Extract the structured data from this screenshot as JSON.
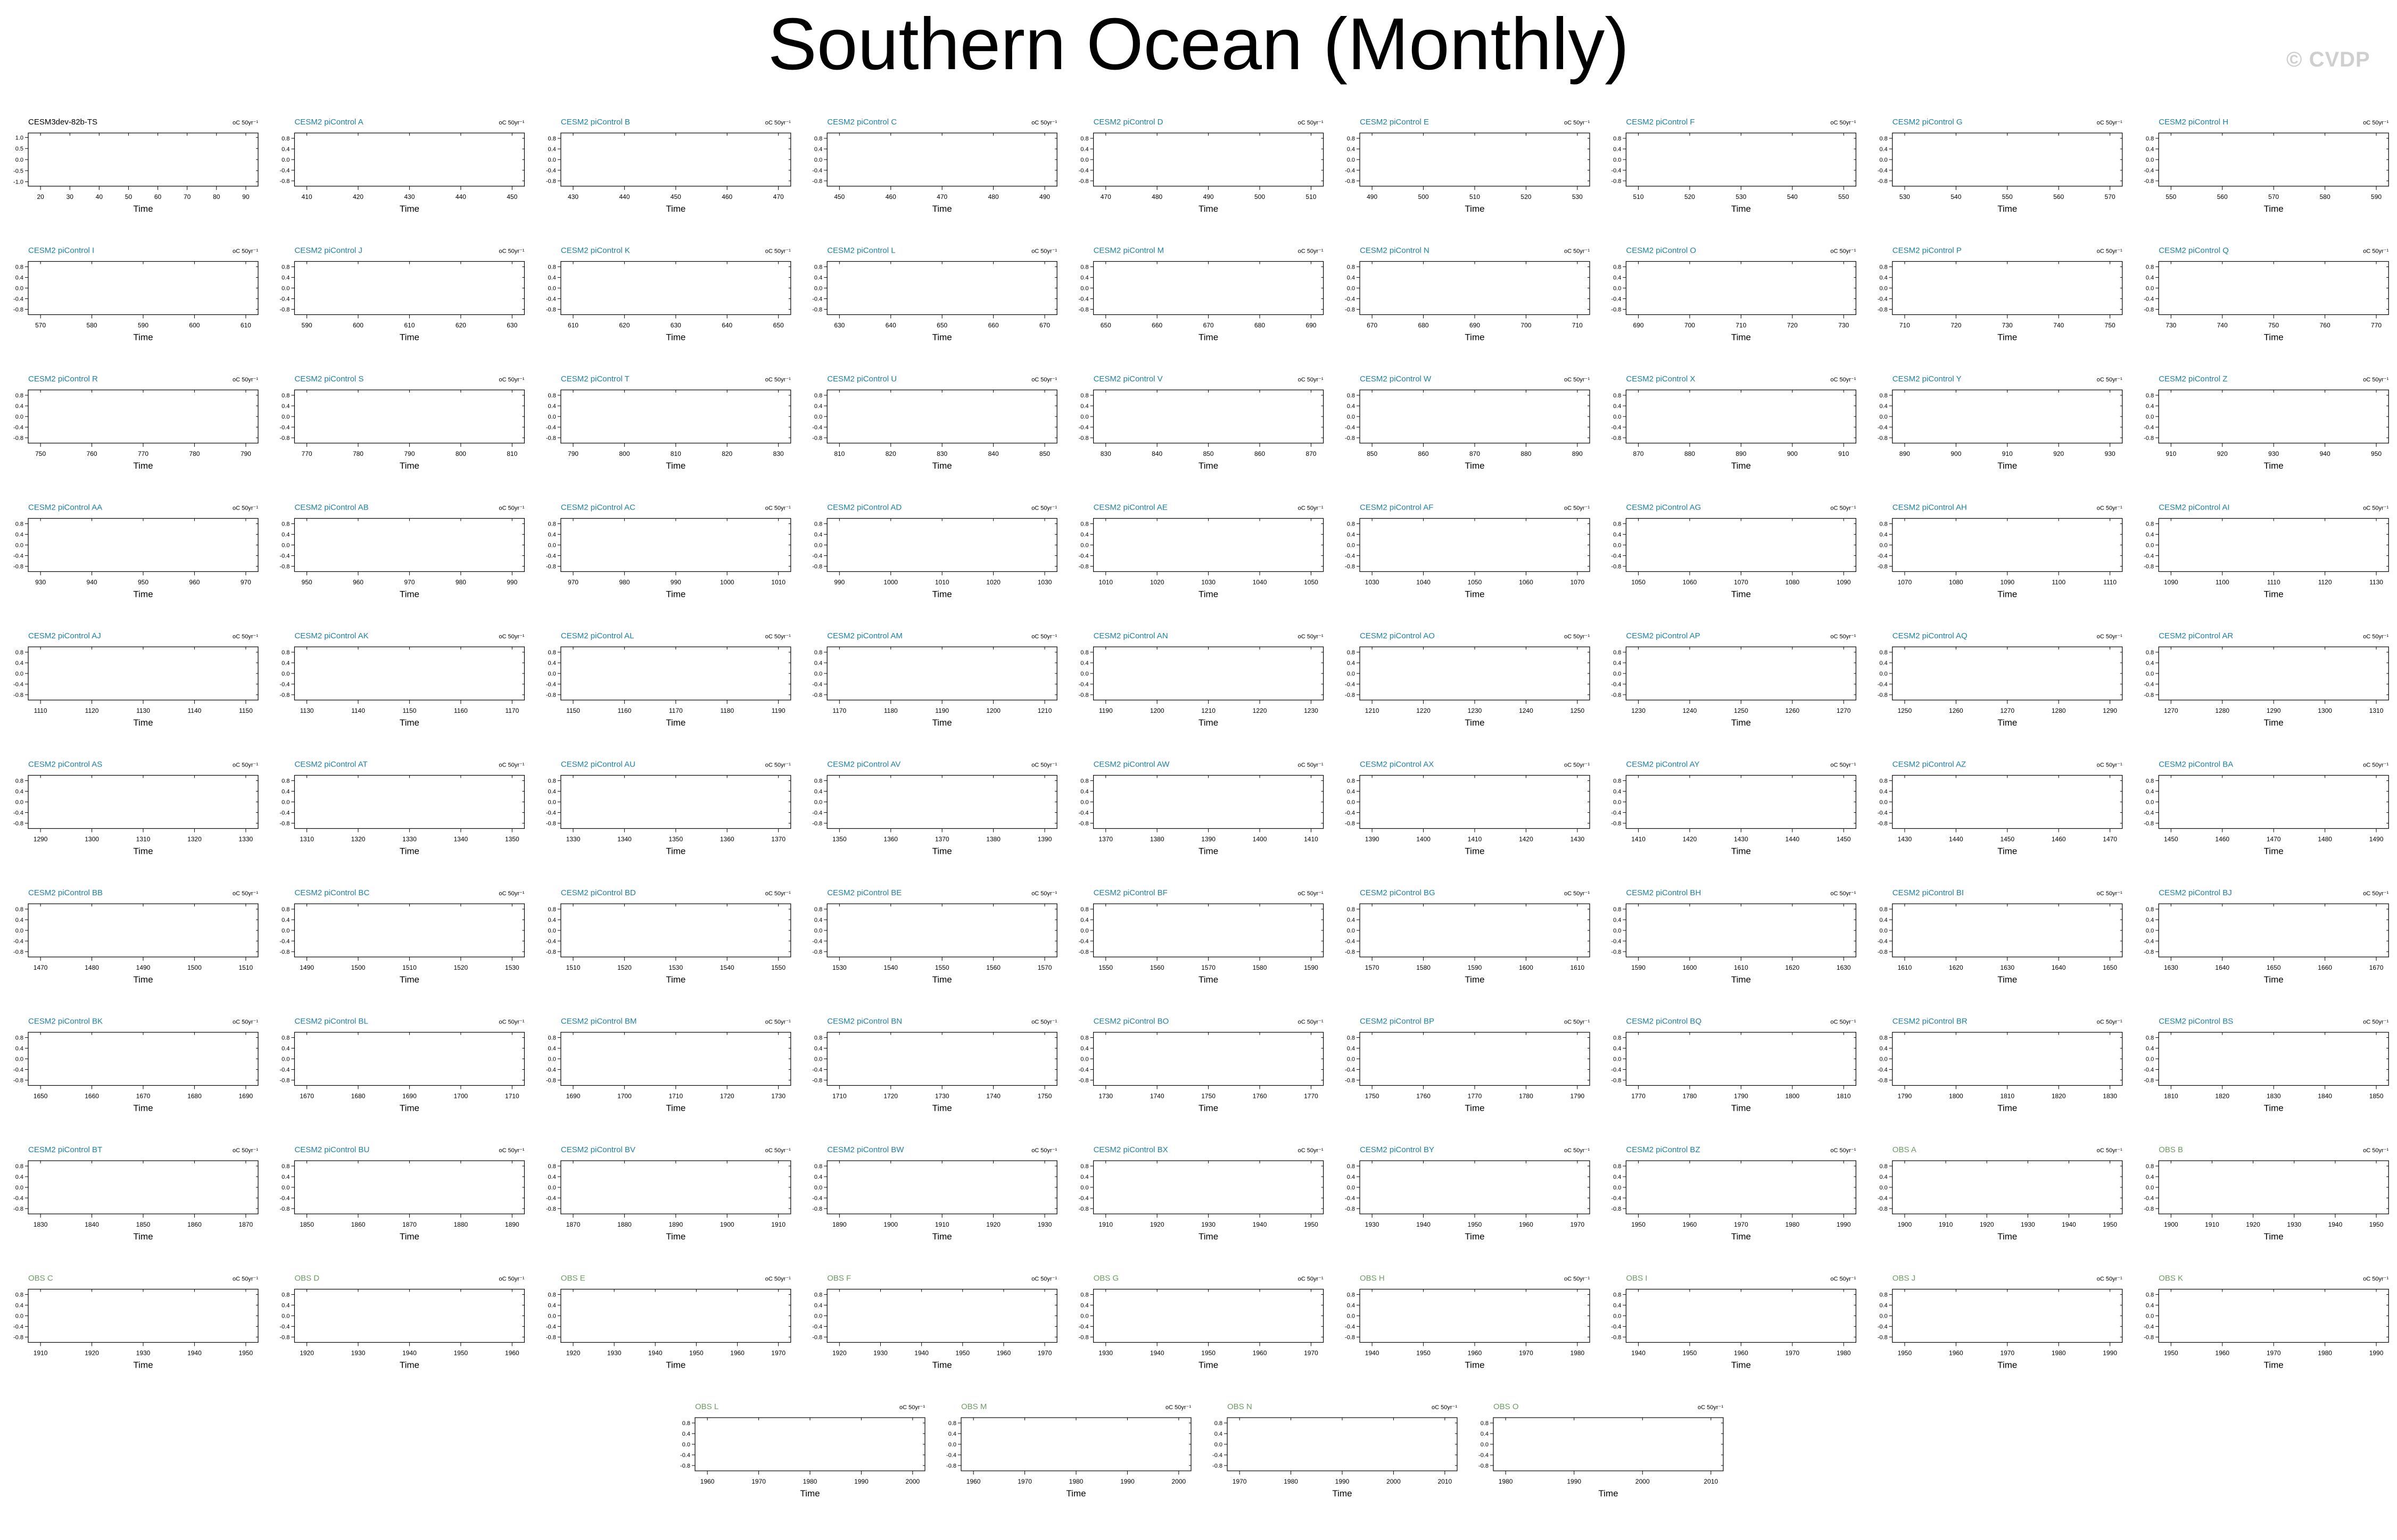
{
  "page": {
    "title": "Southern Ocean (Monthly)",
    "watermark": "© CVDP"
  },
  "colors": {
    "model": "#1e7fa6",
    "obs": "#6d9a62",
    "base": "#000000",
    "line": "#3f63d6"
  },
  "chart_data": {
    "type": "line",
    "unit_label": "oC 50yr⁻¹",
    "xlabel": "Time",
    "ylim": [
      -1.0,
      1.0
    ],
    "series_values_note": "the plotted anomaly curves are not transcribed",
    "panels": [
      {
        "label": "CESM3dev-82b-TS",
        "group": "base",
        "xticks": [
          20,
          30,
          40,
          50,
          60,
          70,
          80,
          90
        ],
        "yticks": [
          "1.0",
          "0.5",
          "0.0",
          "-0.5",
          "-1.0"
        ],
        "ylim": [
          -1.2,
          1.2
        ]
      },
      {
        "label": "CESM2 piControl A",
        "group": "model",
        "xticks": [
          410,
          420,
          430,
          440,
          450
        ]
      },
      {
        "label": "CESM2 piControl B",
        "group": "model",
        "xticks": [
          430,
          440,
          450,
          460,
          470
        ]
      },
      {
        "label": "CESM2 piControl C",
        "group": "model",
        "xticks": [
          450,
          460,
          470,
          480,
          490
        ]
      },
      {
        "label": "CESM2 piControl D",
        "group": "model",
        "xticks": [
          470,
          480,
          490,
          500,
          510
        ]
      },
      {
        "label": "CESM2 piControl E",
        "group": "model",
        "xticks": [
          490,
          500,
          510,
          520,
          530
        ]
      },
      {
        "label": "CESM2 piControl F",
        "group": "model",
        "xticks": [
          510,
          520,
          530,
          540,
          550
        ]
      },
      {
        "label": "CESM2 piControl G",
        "group": "model",
        "xticks": [
          530,
          540,
          550,
          560,
          570
        ]
      },
      {
        "label": "CESM2 piControl H",
        "group": "model",
        "xticks": [
          550,
          560,
          570,
          580,
          590
        ]
      },
      {
        "label": "CESM2 piControl I",
        "group": "model",
        "xticks": [
          570,
          580,
          590,
          600,
          610
        ]
      },
      {
        "label": "CESM2 piControl J",
        "group": "model",
        "xticks": [
          590,
          600,
          610,
          620,
          630
        ]
      },
      {
        "label": "CESM2 piControl K",
        "group": "model",
        "xticks": [
          610,
          620,
          630,
          640,
          650
        ]
      },
      {
        "label": "CESM2 piControl L",
        "group": "model",
        "xticks": [
          630,
          640,
          650,
          660,
          670
        ]
      },
      {
        "label": "CESM2 piControl M",
        "group": "model",
        "xticks": [
          650,
          660,
          670,
          680,
          690
        ]
      },
      {
        "label": "CESM2 piControl N",
        "group": "model",
        "xticks": [
          670,
          680,
          690,
          700,
          710
        ]
      },
      {
        "label": "CESM2 piControl O",
        "group": "model",
        "xticks": [
          690,
          700,
          710,
          720,
          730
        ]
      },
      {
        "label": "CESM2 piControl P",
        "group": "model",
        "xticks": [
          710,
          720,
          730,
          740,
          750
        ]
      },
      {
        "label": "CESM2 piControl Q",
        "group": "model",
        "xticks": [
          730,
          740,
          750,
          760,
          770
        ]
      },
      {
        "label": "CESM2 piControl R",
        "group": "model",
        "xticks": [
          750,
          760,
          770,
          780,
          790
        ]
      },
      {
        "label": "CESM2 piControl S",
        "group": "model",
        "xticks": [
          770,
          780,
          790,
          800,
          810
        ]
      },
      {
        "label": "CESM2 piControl T",
        "group": "model",
        "xticks": [
          790,
          800,
          810,
          820,
          830
        ]
      },
      {
        "label": "CESM2 piControl U",
        "group": "model",
        "xticks": [
          810,
          820,
          830,
          840,
          850
        ]
      },
      {
        "label": "CESM2 piControl V",
        "group": "model",
        "xticks": [
          830,
          840,
          850,
          860,
          870
        ]
      },
      {
        "label": "CESM2 piControl W",
        "group": "model",
        "xticks": [
          850,
          860,
          870,
          880,
          890
        ]
      },
      {
        "label": "CESM2 piControl X",
        "group": "model",
        "xticks": [
          870,
          880,
          890,
          900,
          910
        ]
      },
      {
        "label": "CESM2 piControl Y",
        "group": "model",
        "xticks": [
          890,
          900,
          910,
          920,
          930
        ]
      },
      {
        "label": "CESM2 piControl Z",
        "group": "model",
        "xticks": [
          910,
          920,
          930,
          940,
          950
        ]
      },
      {
        "label": "CESM2 piControl AA",
        "group": "model",
        "xticks": [
          930,
          940,
          950,
          960,
          970
        ]
      },
      {
        "label": "CESM2 piControl AB",
        "group": "model",
        "xticks": [
          950,
          960,
          970,
          980,
          990
        ]
      },
      {
        "label": "CESM2 piControl AC",
        "group": "model",
        "xticks": [
          970,
          980,
          990,
          1000,
          1010
        ]
      },
      {
        "label": "CESM2 piControl AD",
        "group": "model",
        "xticks": [
          990,
          1000,
          1010,
          1020,
          1030
        ]
      },
      {
        "label": "CESM2 piControl AE",
        "group": "model",
        "xticks": [
          1010,
          1020,
          1030,
          1040,
          1050
        ]
      },
      {
        "label": "CESM2 piControl AF",
        "group": "model",
        "xticks": [
          1030,
          1040,
          1050,
          1060,
          1070
        ]
      },
      {
        "label": "CESM2 piControl AG",
        "group": "model",
        "xticks": [
          1050,
          1060,
          1070,
          1080,
          1090
        ]
      },
      {
        "label": "CESM2 piControl AH",
        "group": "model",
        "xticks": [
          1070,
          1080,
          1090,
          1100,
          1110
        ]
      },
      {
        "label": "CESM2 piControl AI",
        "group": "model",
        "xticks": [
          1090,
          1100,
          1110,
          1120,
          1130
        ]
      },
      {
        "label": "CESM2 piControl AJ",
        "group": "model",
        "xticks": [
          1110,
          1120,
          1130,
          1140,
          1150
        ]
      },
      {
        "label": "CESM2 piControl AK",
        "group": "model",
        "xticks": [
          1130,
          1140,
          1150,
          1160,
          1170
        ]
      },
      {
        "label": "CESM2 piControl AL",
        "group": "model",
        "xticks": [
          1150,
          1160,
          1170,
          1180,
          1190
        ]
      },
      {
        "label": "CESM2 piControl AM",
        "group": "model",
        "xticks": [
          1170,
          1180,
          1190,
          1200,
          1210
        ]
      },
      {
        "label": "CESM2 piControl AN",
        "group": "model",
        "xticks": [
          1190,
          1200,
          1210,
          1220,
          1230
        ]
      },
      {
        "label": "CESM2 piControl AO",
        "group": "model",
        "xticks": [
          1210,
          1220,
          1230,
          1240,
          1250
        ]
      },
      {
        "label": "CESM2 piControl AP",
        "group": "model",
        "xticks": [
          1230,
          1240,
          1250,
          1260,
          1270
        ]
      },
      {
        "label": "CESM2 piControl AQ",
        "group": "model",
        "xticks": [
          1250,
          1260,
          1270,
          1280,
          1290
        ]
      },
      {
        "label": "CESM2 piControl AR",
        "group": "model",
        "xticks": [
          1270,
          1280,
          1290,
          1300,
          1310
        ]
      },
      {
        "label": "CESM2 piControl AS",
        "group": "model",
        "xticks": [
          1290,
          1300,
          1310,
          1320,
          1330
        ]
      },
      {
        "label": "CESM2 piControl AT",
        "group": "model",
        "xticks": [
          1310,
          1320,
          1330,
          1340,
          1350
        ]
      },
      {
        "label": "CESM2 piControl AU",
        "group": "model",
        "xticks": [
          1330,
          1340,
          1350,
          1360,
          1370
        ]
      },
      {
        "label": "CESM2 piControl AV",
        "group": "model",
        "xticks": [
          1350,
          1360,
          1370,
          1380,
          1390
        ]
      },
      {
        "label": "CESM2 piControl AW",
        "group": "model",
        "xticks": [
          1370,
          1380,
          1390,
          1400,
          1410
        ]
      },
      {
        "label": "CESM2 piControl AX",
        "group": "model",
        "xticks": [
          1390,
          1400,
          1410,
          1420,
          1430
        ]
      },
      {
        "label": "CESM2 piControl AY",
        "group": "model",
        "xticks": [
          1410,
          1420,
          1430,
          1440,
          1450
        ]
      },
      {
        "label": "CESM2 piControl AZ",
        "group": "model",
        "xticks": [
          1430,
          1440,
          1450,
          1460,
          1470
        ]
      },
      {
        "label": "CESM2 piControl BA",
        "group": "model",
        "xticks": [
          1450,
          1460,
          1470,
          1480,
          1490
        ]
      },
      {
        "label": "CESM2 piControl BB",
        "group": "model",
        "xticks": [
          1470,
          1480,
          1490,
          1500,
          1510
        ]
      },
      {
        "label": "CESM2 piControl BC",
        "group": "model",
        "xticks": [
          1490,
          1500,
          1510,
          1520,
          1530
        ]
      },
      {
        "label": "CESM2 piControl BD",
        "group": "model",
        "xticks": [
          1510,
          1520,
          1530,
          1540,
          1550
        ]
      },
      {
        "label": "CESM2 piControl BE",
        "group": "model",
        "xticks": [
          1530,
          1540,
          1550,
          1560,
          1570
        ]
      },
      {
        "label": "CESM2 piControl BF",
        "group": "model",
        "xticks": [
          1550,
          1560,
          1570,
          1580,
          1590
        ]
      },
      {
        "label": "CESM2 piControl BG",
        "group": "model",
        "xticks": [
          1570,
          1580,
          1590,
          1600,
          1610
        ]
      },
      {
        "label": "CESM2 piControl BH",
        "group": "model",
        "xticks": [
          1590,
          1600,
          1610,
          1620,
          1630
        ]
      },
      {
        "label": "CESM2 piControl BI",
        "group": "model",
        "xticks": [
          1610,
          1620,
          1630,
          1640,
          1650
        ]
      },
      {
        "label": "CESM2 piControl BJ",
        "group": "model",
        "xticks": [
          1630,
          1640,
          1650,
          1660,
          1670
        ]
      },
      {
        "label": "CESM2 piControl BK",
        "group": "model",
        "xticks": [
          1650,
          1660,
          1670,
          1680,
          1690
        ]
      },
      {
        "label": "CESM2 piControl BL",
        "group": "model",
        "xticks": [
          1670,
          1680,
          1690,
          1700,
          1710
        ]
      },
      {
        "label": "CESM2 piControl BM",
        "group": "model",
        "xticks": [
          1690,
          1700,
          1710,
          1720,
          1730
        ]
      },
      {
        "label": "CESM2 piControl BN",
        "group": "model",
        "xticks": [
          1710,
          1720,
          1730,
          1740,
          1750
        ]
      },
      {
        "label": "CESM2 piControl BO",
        "group": "model",
        "xticks": [
          1730,
          1740,
          1750,
          1760,
          1770
        ]
      },
      {
        "label": "CESM2 piControl BP",
        "group": "model",
        "xticks": [
          1750,
          1760,
          1770,
          1780,
          1790
        ]
      },
      {
        "label": "CESM2 piControl BQ",
        "group": "model",
        "xticks": [
          1770,
          1780,
          1790,
          1800,
          1810
        ]
      },
      {
        "label": "CESM2 piControl BR",
        "group": "model",
        "xticks": [
          1790,
          1800,
          1810,
          1820,
          1830
        ]
      },
      {
        "label": "CESM2 piControl BS",
        "group": "model",
        "xticks": [
          1810,
          1820,
          1830,
          1840,
          1850
        ]
      },
      {
        "label": "CESM2 piControl BT",
        "group": "model",
        "xticks": [
          1830,
          1840,
          1850,
          1860,
          1870
        ]
      },
      {
        "label": "CESM2 piControl BU",
        "group": "model",
        "xticks": [
          1850,
          1860,
          1870,
          1880,
          1890
        ]
      },
      {
        "label": "CESM2 piControl BV",
        "group": "model",
        "xticks": [
          1870,
          1880,
          1890,
          1900,
          1910
        ]
      },
      {
        "label": "CESM2 piControl BW",
        "group": "model",
        "xticks": [
          1890,
          1900,
          1910,
          1920,
          1930
        ]
      },
      {
        "label": "CESM2 piControl BX",
        "group": "model",
        "xticks": [
          1910,
          1920,
          1930,
          1940,
          1950
        ]
      },
      {
        "label": "CESM2 piControl BY",
        "group": "model",
        "xticks": [
          1930,
          1940,
          1950,
          1960,
          1970
        ]
      },
      {
        "label": "CESM2 piControl BZ",
        "group": "model",
        "xticks": [
          1950,
          1960,
          1970,
          1980,
          1990
        ]
      },
      {
        "label": "OBS A",
        "group": "obs",
        "xticks": [
          1900,
          1910,
          1920,
          1930,
          1940,
          1950
        ]
      },
      {
        "label": "OBS B",
        "group": "obs",
        "xticks": [
          1900,
          1910,
          1920,
          1930,
          1940,
          1950
        ]
      },
      {
        "label": "OBS C",
        "group": "obs",
        "xticks": [
          1910,
          1920,
          1930,
          1940,
          1950
        ]
      },
      {
        "label": "OBS D",
        "group": "obs",
        "xticks": [
          1920,
          1930,
          1940,
          1950,
          1960
        ]
      },
      {
        "label": "OBS E",
        "group": "obs",
        "xticks": [
          1920,
          1930,
          1940,
          1950,
          1960,
          1970
        ]
      },
      {
        "label": "OBS F",
        "group": "obs",
        "xticks": [
          1920,
          1930,
          1940,
          1950,
          1960,
          1970
        ]
      },
      {
        "label": "OBS G",
        "group": "obs",
        "xticks": [
          1930,
          1940,
          1950,
          1960,
          1970
        ]
      },
      {
        "label": "OBS H",
        "group": "obs",
        "xticks": [
          1940,
          1950,
          1960,
          1970,
          1980
        ]
      },
      {
        "label": "OBS I",
        "group": "obs",
        "xticks": [
          1940,
          1950,
          1960,
          1970,
          1980
        ]
      },
      {
        "label": "OBS J",
        "group": "obs",
        "xticks": [
          1950,
          1960,
          1970,
          1980,
          1990
        ]
      },
      {
        "label": "OBS K",
        "group": "obs",
        "xticks": [
          1950,
          1960,
          1970,
          1980,
          1990
        ]
      },
      {
        "label": "OBS L",
        "group": "obs",
        "xticks": [
          1960,
          1970,
          1980,
          1990,
          2000
        ]
      },
      {
        "label": "OBS M",
        "group": "obs",
        "xticks": [
          1960,
          1970,
          1980,
          1990,
          2000
        ]
      },
      {
        "label": "OBS N",
        "group": "obs",
        "xticks": [
          1970,
          1980,
          1990,
          2000,
          2010
        ]
      },
      {
        "label": "OBS O",
        "group": "obs",
        "xticks": [
          1980,
          1990,
          2000,
          2010
        ]
      }
    ],
    "default_yticks": [
      "0.8",
      "0.4",
      "0.0",
      "-0.4",
      "-0.8"
    ],
    "default_ylim": [
      -1.0,
      1.0
    ]
  }
}
